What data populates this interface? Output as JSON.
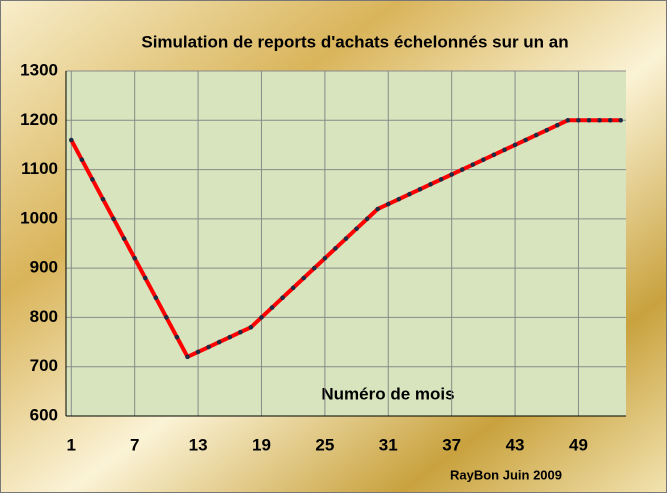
{
  "chart_data": {
    "type": "line",
    "title": "Simulation de reports d'achats échelonnés sur un an",
    "x_label": "Numéro de mois",
    "credit": "RayBon Juin 2009",
    "x": [
      1,
      2,
      3,
      4,
      5,
      6,
      7,
      8,
      9,
      10,
      11,
      12,
      13,
      14,
      15,
      16,
      17,
      18,
      19,
      20,
      21,
      22,
      23,
      24,
      25,
      26,
      27,
      28,
      29,
      30,
      31,
      32,
      33,
      34,
      35,
      36,
      37,
      38,
      39,
      40,
      41,
      42,
      43,
      44,
      45,
      46,
      47,
      48,
      49,
      50,
      51,
      52,
      53
    ],
    "values": [
      1160,
      1120,
      1080,
      1040,
      1000,
      960,
      920,
      880,
      840,
      800,
      760,
      720,
      730,
      740,
      750,
      760,
      770,
      780,
      800,
      820,
      840,
      860,
      880,
      900,
      920,
      940,
      960,
      980,
      1000,
      1020,
      1030,
      1040,
      1050,
      1060,
      1070,
      1080,
      1090,
      1100,
      1110,
      1120,
      1130,
      1140,
      1150,
      1160,
      1170,
      1180,
      1190,
      1200,
      1200,
      1200,
      1200,
      1200,
      1200
    ],
    "color": "#ff0000",
    "marker_color": "#1f2a44",
    "xlim": [
      0.5,
      53.5
    ],
    "xticks": [
      1,
      7,
      13,
      19,
      25,
      31,
      37,
      43,
      49
    ],
    "ylim": [
      600,
      1300
    ],
    "yticks": [
      600,
      700,
      800,
      900,
      1000,
      1100,
      1200,
      1300
    ],
    "grid": true
  }
}
